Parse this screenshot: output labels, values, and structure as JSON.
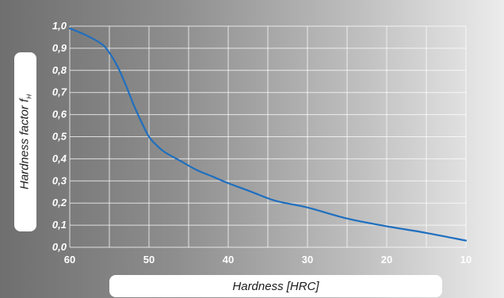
{
  "chart_data": {
    "type": "line",
    "title": "",
    "ylabel": "Hardness factor f",
    "ylabel_subscript": "H",
    "xlabel": "Hardness [HRC]",
    "xlim": [
      60,
      10
    ],
    "ylim": [
      0,
      1
    ],
    "x_ticks": [
      "60",
      "50",
      "40",
      "30",
      "20",
      "10"
    ],
    "x_tick_values": [
      60,
      50,
      40,
      30,
      20,
      10
    ],
    "y_ticks": [
      "0,0",
      "0,1",
      "0,2",
      "0,3",
      "0,4",
      "0,5",
      "0,6",
      "0,7",
      "0,8",
      "0,9",
      "1,0"
    ],
    "y_tick_values": [
      0,
      0.1,
      0.2,
      0.3,
      0.4,
      0.5,
      0.6,
      0.7,
      0.8,
      0.9,
      1.0
    ],
    "grid": true,
    "line_color": "#1f6fbf",
    "series": [
      {
        "x": [
          60,
          58,
          56,
          55,
          54,
          53,
          52,
          51,
          50,
          49,
          48,
          46,
          44,
          42,
          40,
          37,
          34,
          30,
          25,
          20,
          15,
          10
        ],
        "y": [
          0.99,
          0.96,
          0.92,
          0.88,
          0.82,
          0.74,
          0.65,
          0.57,
          0.5,
          0.46,
          0.43,
          0.39,
          0.35,
          0.32,
          0.29,
          0.25,
          0.21,
          0.18,
          0.13,
          0.095,
          0.065,
          0.03
        ]
      }
    ]
  }
}
